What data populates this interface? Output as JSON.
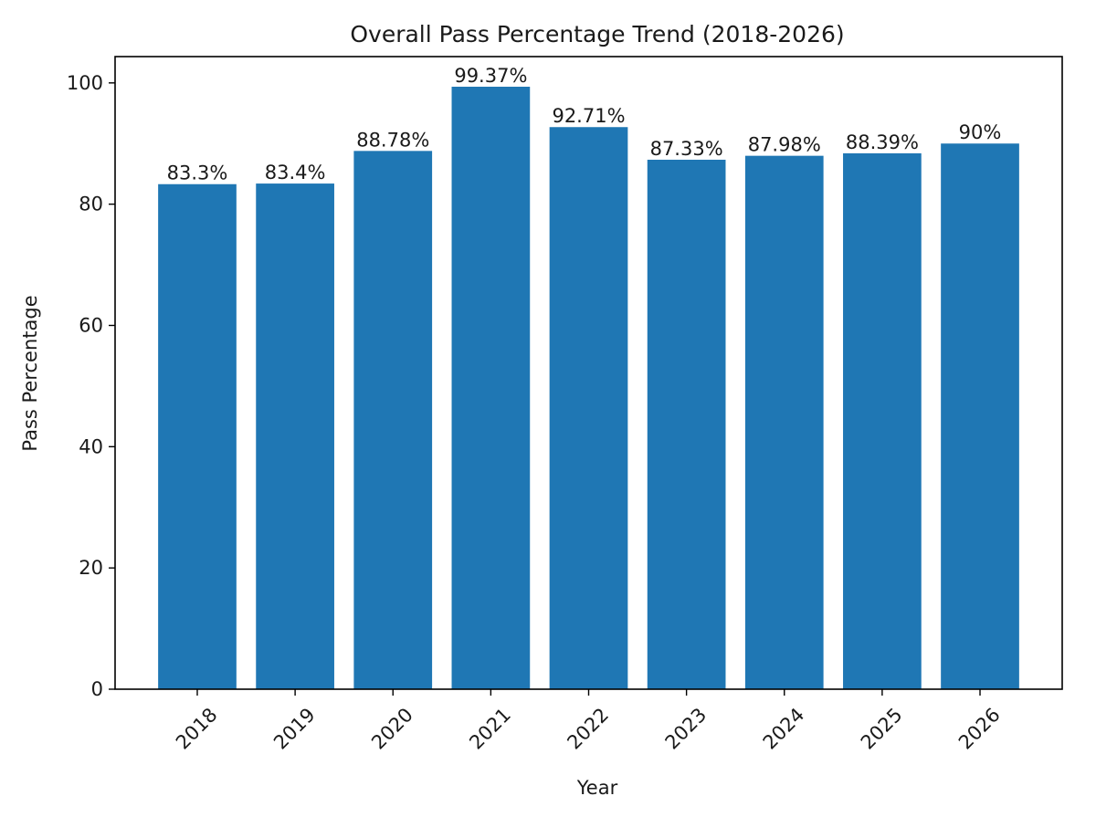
{
  "chart_data": {
    "type": "bar",
    "title": "Overall Pass Percentage Trend (2018-2026)",
    "xlabel": "Year",
    "ylabel": "Pass Percentage",
    "categories": [
      "2018",
      "2019",
      "2020",
      "2021",
      "2022",
      "2023",
      "2024",
      "2025",
      "2026"
    ],
    "values": [
      83.3,
      83.4,
      88.78,
      99.37,
      92.71,
      87.33,
      87.98,
      88.39,
      90
    ],
    "data_labels": [
      "83.3%",
      "83.4%",
      "88.78%",
      "99.37%",
      "92.71%",
      "87.33%",
      "87.98%",
      "88.39%",
      "90%"
    ],
    "ylim": [
      0,
      104.34
    ],
    "yticks": [
      0,
      20,
      40,
      60,
      80,
      100
    ],
    "grid": false,
    "bar_color": "#1f77b4"
  }
}
